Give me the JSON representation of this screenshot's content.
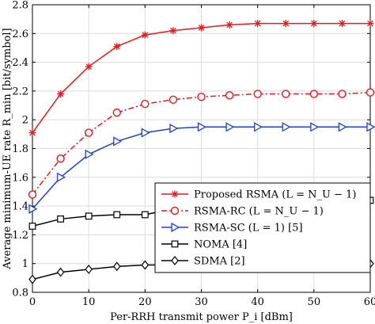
{
  "chart_data": {
    "type": "line",
    "xlabel": "Per-RRH transmit power P_i [dBm]",
    "ylabel": "Average minimum-UE rate R_min [bit/symbol]",
    "xlim": [
      0,
      60
    ],
    "ylim": [
      0.8,
      2.8
    ],
    "xticks": [
      "0",
      "10",
      "20",
      "30",
      "40",
      "50",
      "60"
    ],
    "yticks": [
      "0.8",
      "1",
      "1.2",
      "1.4",
      "1.6",
      "1.8",
      "2",
      "2.2",
      "2.4",
      "2.6",
      "2.8"
    ],
    "grid": true,
    "legend_position": "lower-right",
    "x": [
      0,
      5,
      10,
      15,
      20,
      25,
      30,
      35,
      40,
      45,
      50,
      55,
      60
    ],
    "series": [
      {
        "name": "Proposed RSMA (L = N_U − 1)",
        "color": "#e8191f",
        "marker": "asterisk",
        "dash": "solid",
        "values": [
          1.91,
          2.18,
          2.37,
          2.51,
          2.59,
          2.62,
          2.64,
          2.66,
          2.67,
          2.67,
          2.67,
          2.67,
          2.67
        ]
      },
      {
        "name": "RSMA-RC (L = N_U − 1)",
        "color": "#e8191f",
        "marker": "circle",
        "dash": "dashdot",
        "values": [
          1.48,
          1.73,
          1.91,
          2.05,
          2.11,
          2.14,
          2.16,
          2.17,
          2.18,
          2.18,
          2.18,
          2.18,
          2.19
        ]
      },
      {
        "name": "RSMA-SC (L = 1) [5]",
        "color": "#1f3fd8",
        "marker": "triangle-right",
        "dash": "solid",
        "values": [
          1.38,
          1.6,
          1.76,
          1.85,
          1.91,
          1.94,
          1.95,
          1.95,
          1.95,
          1.95,
          1.95,
          1.95,
          1.95
        ]
      },
      {
        "name": "NOMA [4]",
        "color": "#000000",
        "marker": "square",
        "dash": "solid",
        "values": [
          1.26,
          1.31,
          1.33,
          1.34,
          1.34,
          1.38,
          1.4,
          1.41,
          1.42,
          1.43,
          1.43,
          1.43,
          1.44
        ]
      },
      {
        "name": "SDMA [2]",
        "color": "#000000",
        "marker": "diamond",
        "dash": "solid",
        "values": [
          0.89,
          0.94,
          0.96,
          0.98,
          0.99,
          0.99,
          0.99,
          0.99,
          0.99,
          0.99,
          0.99,
          0.99,
          1.0
        ]
      }
    ]
  }
}
